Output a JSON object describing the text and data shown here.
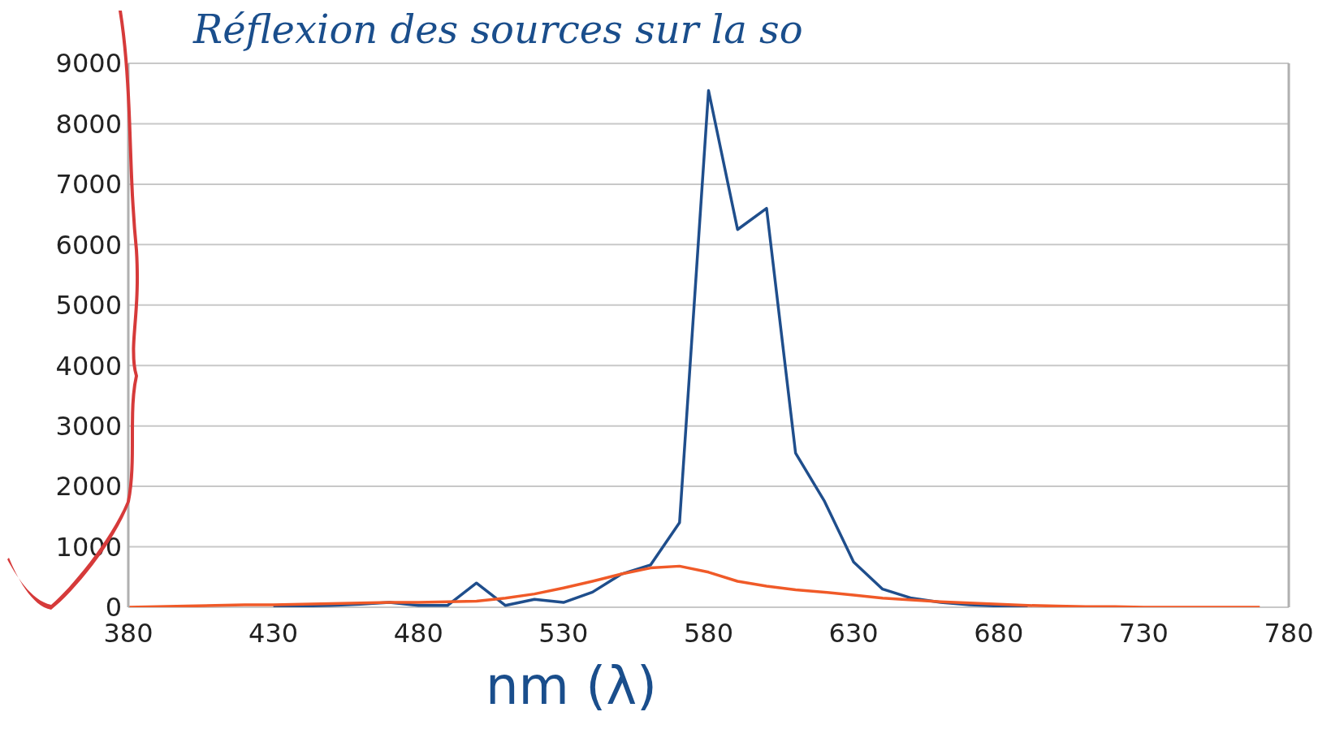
{
  "chart_data": {
    "type": "line",
    "title": "Réflexion des sources sur la so",
    "xlabel": "nm (λ)",
    "x": [
      380,
      390,
      400,
      410,
      420,
      430,
      440,
      450,
      460,
      470,
      480,
      490,
      500,
      510,
      520,
      530,
      540,
      550,
      560,
      570,
      580,
      590,
      600,
      610,
      620,
      630,
      640,
      650,
      660,
      670,
      680,
      690,
      700,
      710,
      720,
      730,
      740,
      750,
      760,
      770
    ],
    "series": [
      {
        "color": "#1f4e8c",
        "values": [
          null,
          null,
          null,
          null,
          null,
          20,
          20,
          30,
          50,
          80,
          30,
          30,
          400,
          30,
          130,
          80,
          250,
          550,
          700,
          1400,
          8550,
          6250,
          6600,
          2550,
          1750,
          750,
          300,
          150,
          80,
          40,
          20,
          10,
          null,
          null,
          null,
          null,
          null,
          null,
          null,
          null
        ]
      },
      {
        "color": "#f05a28",
        "values": [
          0,
          10,
          20,
          30,
          40,
          40,
          50,
          60,
          70,
          80,
          80,
          90,
          100,
          150,
          220,
          320,
          430,
          550,
          650,
          680,
          580,
          430,
          350,
          290,
          250,
          200,
          150,
          120,
          90,
          70,
          50,
          30,
          20,
          10,
          10,
          0,
          0,
          0,
          0,
          0
        ]
      }
    ],
    "xlim": [
      380,
      780
    ],
    "xticks": [
      380,
      430,
      480,
      530,
      580,
      630,
      680,
      730,
      780
    ],
    "ylim": [
      0,
      9000
    ],
    "yticks": [
      0,
      1000,
      2000,
      3000,
      4000,
      5000,
      6000,
      7000,
      8000,
      9000
    ],
    "grid": "y",
    "legend": false,
    "marker": "none",
    "line_style": "solid"
  }
}
